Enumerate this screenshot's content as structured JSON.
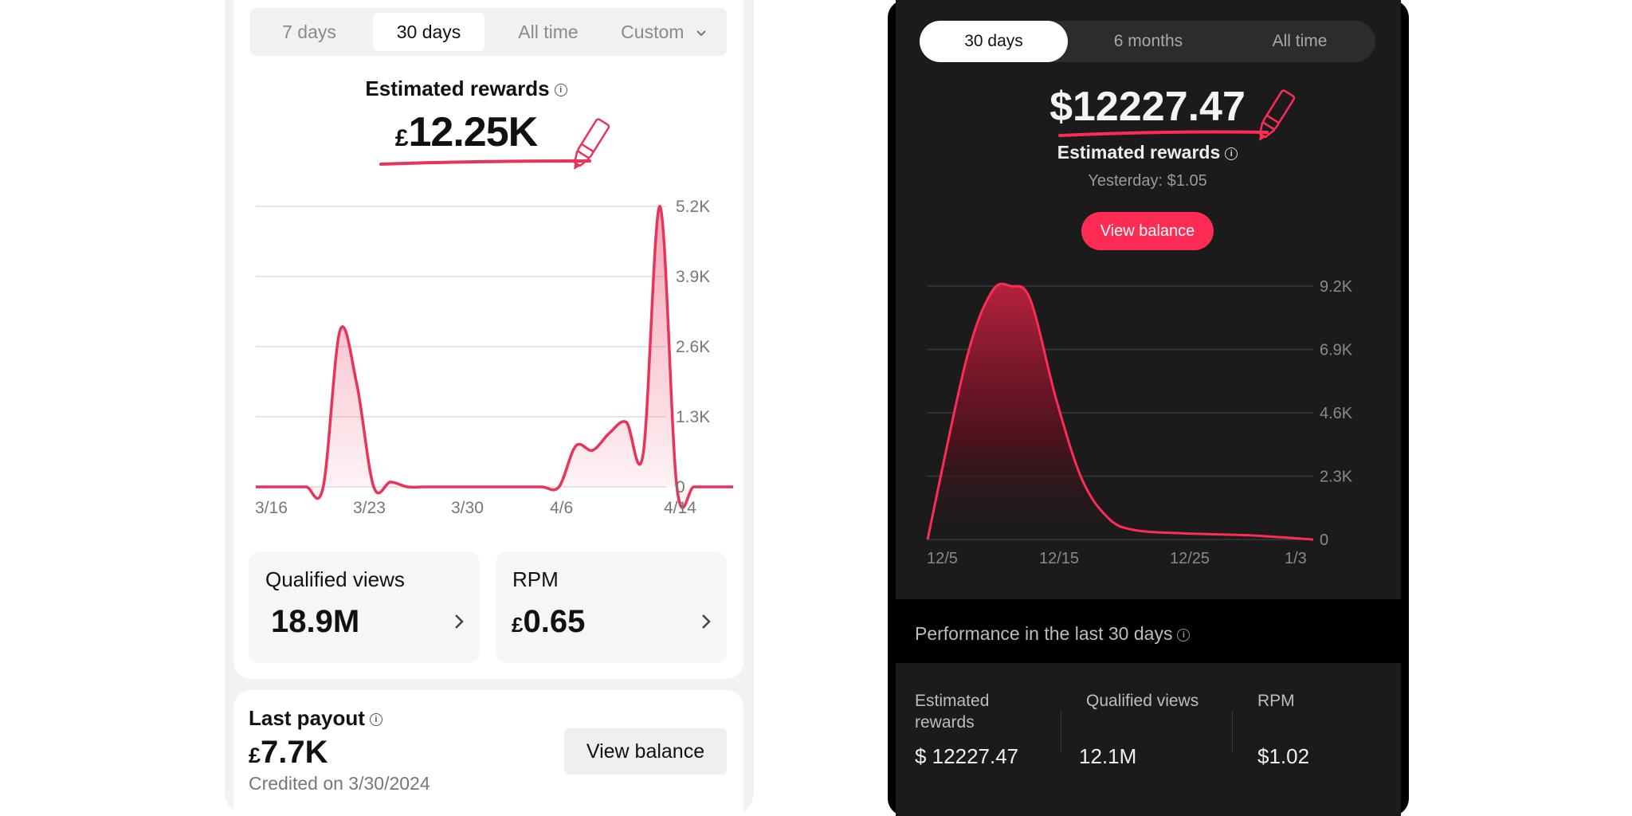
{
  "left": {
    "tabs": [
      {
        "label": "7 days",
        "active": false
      },
      {
        "label": "30 days",
        "active": true
      },
      {
        "label": "All time",
        "active": false
      },
      {
        "label": "Custom",
        "active": false
      }
    ],
    "rewards_title": "Estimated rewards",
    "rewards_currency": "£",
    "rewards_value": "12.25K",
    "chart_data": {
      "type": "area",
      "x_ticks": [
        "3/16",
        "3/23",
        "3/30",
        "4/6",
        "4/14"
      ],
      "y_ticks": [
        "0",
        "1.3K",
        "2.6K",
        "3.9K",
        "5.2K"
      ],
      "ylim": [
        0,
        5200
      ],
      "x": [
        0,
        1,
        2,
        3,
        4,
        5,
        6,
        7,
        8,
        9,
        10,
        11,
        12,
        13,
        14,
        15,
        16,
        17,
        18,
        19,
        20,
        21,
        22,
        23,
        24,
        25,
        26,
        27,
        28,
        29
      ],
      "values": [
        0,
        0,
        0,
        0,
        0,
        2900,
        1900,
        0,
        90,
        0,
        0,
        0,
        0,
        0,
        0,
        0,
        0,
        0,
        0,
        760,
        680,
        1000,
        1200,
        620,
        5200,
        0,
        0,
        0,
        0,
        0
      ]
    },
    "metrics": [
      {
        "label": "Qualified views",
        "value": "18.9M",
        "currency": ""
      },
      {
        "label": "RPM",
        "value": "0.65",
        "currency": "£"
      }
    ],
    "payout": {
      "title": "Last payout",
      "currency": "£",
      "value": "7.7K",
      "credited": "Credited on 3/30/2024",
      "button": "View balance"
    },
    "colors": {
      "accent": "#e8345a"
    }
  },
  "right": {
    "tabs": [
      {
        "label": "30 days",
        "active": true
      },
      {
        "label": "6 months",
        "active": false
      },
      {
        "label": "All time",
        "active": false
      }
    ],
    "rewards_value": "$12227.47",
    "rewards_title": "Estimated rewards",
    "yesterday": "Yesterday: $1.05",
    "view_balance": "View balance",
    "chart_data": {
      "type": "area",
      "x_ticks": [
        "12/5",
        "12/15",
        "12/25",
        "1/3"
      ],
      "y_ticks": [
        "0",
        "2.3K",
        "4.6K",
        "6.9K",
        "9.2K"
      ],
      "ylim": [
        0,
        9200
      ],
      "x": [
        0,
        3,
        5,
        6.5,
        8,
        10,
        12,
        14,
        16,
        20,
        25,
        30
      ],
      "values": [
        0,
        6500,
        9000,
        9200,
        8700,
        5100,
        2200,
        800,
        350,
        220,
        150,
        0
      ]
    },
    "performance_title": "Performance in the last 30 days",
    "stats": [
      {
        "label": "Estimated rewards",
        "value": "$ 12227.47"
      },
      {
        "label": "Qualified views",
        "value": "12.1M"
      },
      {
        "label": "RPM",
        "value": "$1.02"
      }
    ],
    "colors": {
      "accent": "#fe2c55"
    }
  }
}
